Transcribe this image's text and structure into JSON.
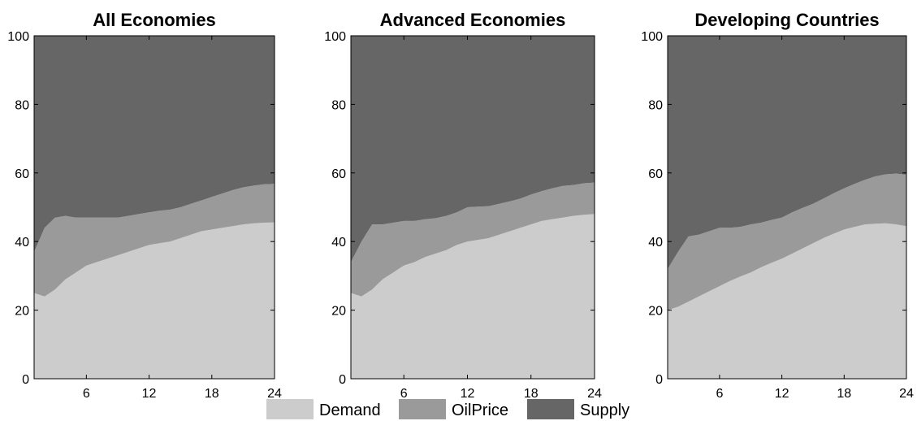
{
  "colors": {
    "Demand": "#cccccc",
    "OilPrice": "#9a9a9a",
    "Supply": "#666666"
  },
  "legend": {
    "items": [
      "Demand",
      "OilPrice",
      "Supply"
    ],
    "placement": "bottom-center"
  },
  "chart_data": [
    {
      "type": "area",
      "stacked": true,
      "title": "All Economies",
      "xlabel": "",
      "ylabel": "",
      "xlim": [
        1,
        24
      ],
      "ylim": [
        0,
        100
      ],
      "xticks": [
        6,
        12,
        18,
        24
      ],
      "yticks": [
        0,
        20,
        40,
        60,
        80,
        100
      ],
      "grid": false,
      "x": [
        1,
        2,
        3,
        4,
        5,
        6,
        7,
        8,
        9,
        10,
        11,
        12,
        13,
        14,
        15,
        16,
        17,
        18,
        19,
        20,
        21,
        22,
        23,
        24
      ],
      "series": [
        {
          "name": "Demand",
          "values": [
            25,
            24,
            26,
            29,
            31,
            33,
            34,
            35,
            36,
            37,
            38,
            39,
            39.5,
            40,
            41,
            42,
            43,
            43.5,
            44,
            44.5,
            45,
            45.3,
            45.5,
            45.6
          ]
        },
        {
          "name": "OilPrice",
          "values": [
            12,
            20,
            21,
            18.5,
            16,
            14,
            13,
            12,
            11,
            10.5,
            10,
            9.5,
            9.5,
            9.3,
            9,
            9,
            9,
            9.5,
            10,
            10.5,
            10.8,
            11,
            11.2,
            11.2
          ]
        },
        {
          "name": "Supply",
          "values": [
            63,
            56,
            53,
            52.5,
            53,
            53,
            53,
            53,
            53,
            52.5,
            52,
            51.5,
            51,
            50.7,
            50,
            49,
            48,
            47,
            46,
            45,
            44.2,
            43.7,
            43.3,
            43.2
          ]
        }
      ]
    },
    {
      "type": "area",
      "stacked": true,
      "title": "Advanced Economies",
      "xlabel": "",
      "ylabel": "",
      "xlim": [
        1,
        24
      ],
      "ylim": [
        0,
        100
      ],
      "xticks": [
        6,
        12,
        18,
        24
      ],
      "yticks": [
        0,
        20,
        40,
        60,
        80,
        100
      ],
      "grid": false,
      "x": [
        1,
        2,
        3,
        4,
        5,
        6,
        7,
        8,
        9,
        10,
        11,
        12,
        13,
        14,
        15,
        16,
        17,
        18,
        19,
        20,
        21,
        22,
        23,
        24
      ],
      "series": [
        {
          "name": "Demand",
          "values": [
            25,
            24,
            26,
            29,
            31,
            33,
            34,
            35.5,
            36.5,
            37.5,
            39,
            40,
            40.5,
            41,
            42,
            43,
            44,
            45,
            46,
            46.5,
            47,
            47.5,
            47.8,
            48
          ]
        },
        {
          "name": "OilPrice",
          "values": [
            9,
            16,
            19,
            16,
            14.5,
            13,
            12,
            11,
            10.3,
            10,
            9.5,
            10,
            9.7,
            9.3,
            9,
            8.7,
            8.5,
            8.7,
            8.7,
            9,
            9.2,
            9,
            9.2,
            9.2
          ]
        },
        {
          "name": "Supply",
          "values": [
            66,
            60,
            55,
            55,
            54.5,
            54,
            54,
            53.5,
            53.2,
            52.5,
            51.5,
            50,
            49.8,
            49.7,
            49,
            48.3,
            47.5,
            46.3,
            45.3,
            44.5,
            43.8,
            43.5,
            43,
            42.8
          ]
        }
      ]
    },
    {
      "type": "area",
      "stacked": true,
      "title": "Developing Countries",
      "xlabel": "",
      "ylabel": "",
      "xlim": [
        1,
        24
      ],
      "ylim": [
        0,
        100
      ],
      "xticks": [
        6,
        12,
        18,
        24
      ],
      "yticks": [
        0,
        20,
        40,
        60,
        80,
        100
      ],
      "grid": false,
      "x": [
        1,
        2,
        3,
        4,
        5,
        6,
        7,
        8,
        9,
        10,
        11,
        12,
        13,
        14,
        15,
        16,
        17,
        18,
        19,
        20,
        21,
        22,
        23,
        24
      ],
      "series": [
        {
          "name": "Demand",
          "values": [
            20,
            21,
            22.5,
            24,
            25.5,
            27,
            28.5,
            29.8,
            31,
            32.5,
            33.8,
            35,
            36.5,
            38,
            39.5,
            41,
            42.3,
            43.5,
            44.3,
            45,
            45.2,
            45.3,
            45,
            44.5
          ]
        },
        {
          "name": "OilPrice",
          "values": [
            12,
            16,
            19,
            18,
            17.5,
            17,
            15.5,
            14.5,
            14,
            13,
            12.5,
            12,
            12,
            11.8,
            11.5,
            11.5,
            11.8,
            12,
            12.5,
            13,
            13.8,
            14.3,
            14.8,
            15
          ]
        },
        {
          "name": "Supply",
          "values": [
            68,
            63,
            58.5,
            58,
            57,
            56,
            56,
            55.7,
            55,
            54.5,
            53.7,
            53,
            51.5,
            50.2,
            49,
            47.5,
            45.9,
            44.5,
            43.2,
            42,
            41,
            40.4,
            40.2,
            40.5
          ]
        }
      ]
    }
  ]
}
